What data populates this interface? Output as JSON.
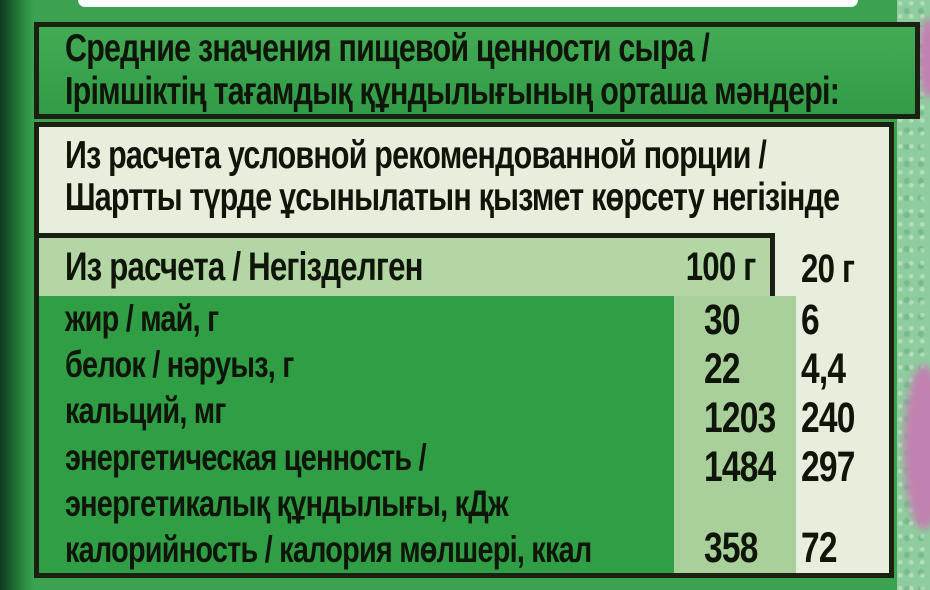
{
  "top_header": {
    "line1": "Средние значения пищевой ценности сыра /",
    "line2": "Ірімшіктің тағамдық құндылығының орташа мәндері:"
  },
  "portion_note": {
    "line1": "Из расчета условной рекомендованной порции /",
    "line2": "Шартты түрде ұсынылатын қызмет көрсету негізінде"
  },
  "table": {
    "header": {
      "basis": "Из расчета / Негізделген",
      "per_100g": "100 г",
      "per_20g": "20 г"
    },
    "rows": [
      {
        "label": "жир / май, г",
        "per100": "30",
        "per20": "6"
      },
      {
        "label": "белок / нәруыз, г",
        "per100": "22",
        "per20": "4,4"
      },
      {
        "label": "кальций, мг",
        "per100": "1203",
        "per20": "240"
      },
      {
        "label": "энергетическая ценность /",
        "per100": "1484",
        "per20": "297"
      },
      {
        "label": "энергетикалық құндылығы, кДж",
        "per100": "",
        "per20": ""
      },
      {
        "label": "калорийность / калория мөлшері, ккал",
        "per100": "358",
        "per20": "72"
      }
    ]
  },
  "colors": {
    "packaging_green": "#3ca24f",
    "header_box_green": "#3aa34c",
    "label_column_green": "#2f9e44",
    "per100_column_green": "#a9d09b",
    "table_header_green": "#b3d6a5",
    "pale_background": "#e7efdc",
    "border_black": "#1a2012",
    "text_black": "#10150a",
    "side_strip_green": "#8fcd9e",
    "pink_print_accent": "#c181b1",
    "top_edge_white": "#fdfdf9"
  }
}
